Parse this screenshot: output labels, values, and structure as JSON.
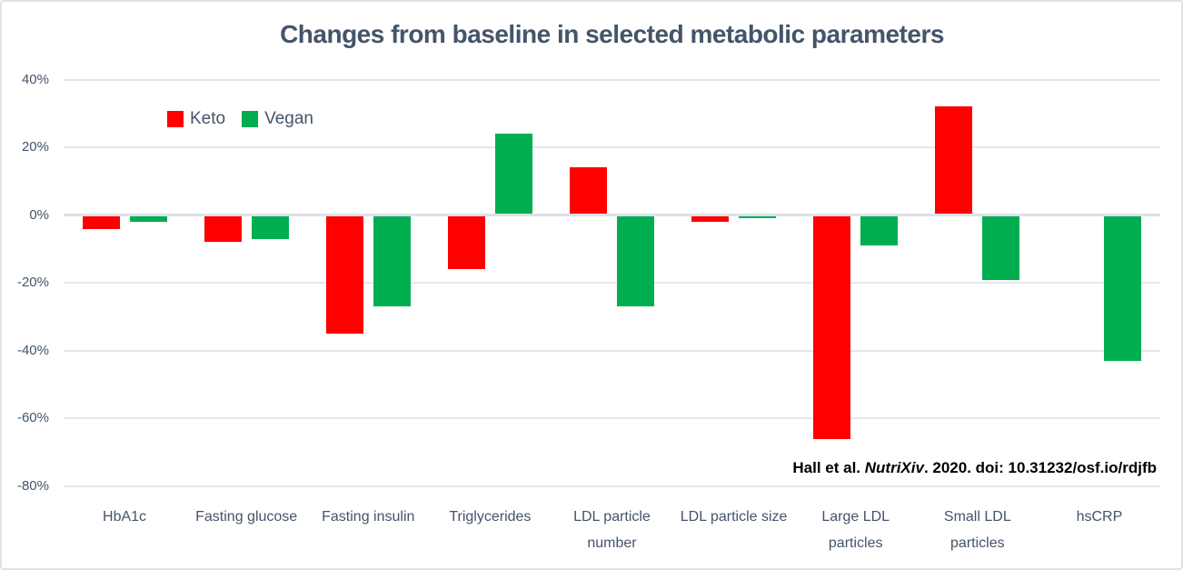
{
  "title": "Changes from baseline in selected metabolic parameters",
  "legend": {
    "keto_label": "Keto",
    "vegan_label": "Vegan"
  },
  "annotation": {
    "part1": "Hall et al. ",
    "part2": "NutriXiv",
    "part3": ". 2020. doi: 10.31232/osf.io/rdjfb"
  },
  "colors": {
    "keto": "#ff0000",
    "vegan": "#00ae50",
    "axis_text": "#44546a",
    "gridline": "#e4e8ee",
    "zero_line": "#dce1e8",
    "frame_border": "#dee2e8",
    "annotation_text": "#000000"
  },
  "chart_data": {
    "type": "bar",
    "title": "Changes from baseline in selected metabolic parameters",
    "categories": [
      "HbA1c",
      "Fasting glucose",
      "Fasting insulin",
      "Triglycerides",
      "LDL particle number",
      "LDL particle size",
      "Large LDL particles",
      "Small LDL particles",
      "hsCRP"
    ],
    "series": [
      {
        "name": "Keto",
        "color": "#ff0000",
        "values": [
          -4,
          -8,
          -35,
          -16,
          14,
          -2,
          -66,
          32,
          0
        ]
      },
      {
        "name": "Vegan",
        "color": "#00ae50",
        "values": [
          -2,
          -7,
          -27,
          24,
          -27,
          -1,
          -9,
          -19,
          -43
        ]
      }
    ],
    "xlabel": "",
    "ylabel": "",
    "ylim": [
      -80,
      40
    ],
    "ytick_step": 20,
    "ytick_format": "percent",
    "grid": true,
    "legend_position": "top-left-inside",
    "annotation": "Hall et al. NutriXiv. 2020. doi: 10.31232/osf.io/rdjfb"
  }
}
